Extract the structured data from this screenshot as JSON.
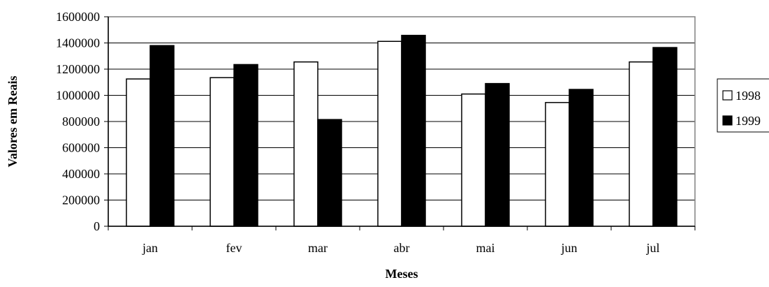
{
  "chart_data": {
    "type": "bar",
    "title": "",
    "xlabel": "Meses",
    "ylabel": "Valores em Reais",
    "categories": [
      "jan",
      "fev",
      "mar",
      "abr",
      "mai",
      "jun",
      "jul"
    ],
    "series": [
      {
        "name": "1998",
        "color": "#ffffff",
        "values": [
          1125000,
          1135000,
          1255000,
          1412000,
          1010000,
          945000,
          1255000
        ]
      },
      {
        "name": "1999",
        "color": "#000000",
        "values": [
          1380000,
          1235000,
          815000,
          1458000,
          1090000,
          1045000,
          1365000
        ]
      }
    ],
    "ylim": [
      0,
      1600000
    ],
    "yticks": [
      "0",
      "200000",
      "400000",
      "600000",
      "800000",
      "1000000",
      "1200000",
      "1400000",
      "1600000"
    ],
    "grid": true,
    "legend_position": "right"
  }
}
